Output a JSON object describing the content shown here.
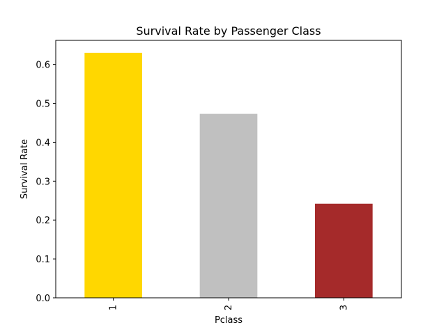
{
  "chart_data": {
    "type": "bar",
    "title": "Survival Rate by Passenger Class",
    "xlabel": "Pclass",
    "ylabel": "Survival Rate",
    "categories": [
      "1",
      "2",
      "3"
    ],
    "values": [
      0.63,
      0.473,
      0.242
    ],
    "colors": [
      "#ffd700",
      "#c0c0c0",
      "#a52a2a"
    ],
    "ylim": [
      0,
      0.662
    ],
    "yticks": [
      {
        "value": 0.0,
        "label": "0.0"
      },
      {
        "value": 0.1,
        "label": "0.1"
      },
      {
        "value": 0.2,
        "label": "0.2"
      },
      {
        "value": 0.3,
        "label": "0.3"
      },
      {
        "value": 0.4,
        "label": "0.4"
      },
      {
        "value": 0.5,
        "label": "0.5"
      },
      {
        "value": 0.6,
        "label": "0.6"
      }
    ],
    "grid": false,
    "legend": "none"
  }
}
